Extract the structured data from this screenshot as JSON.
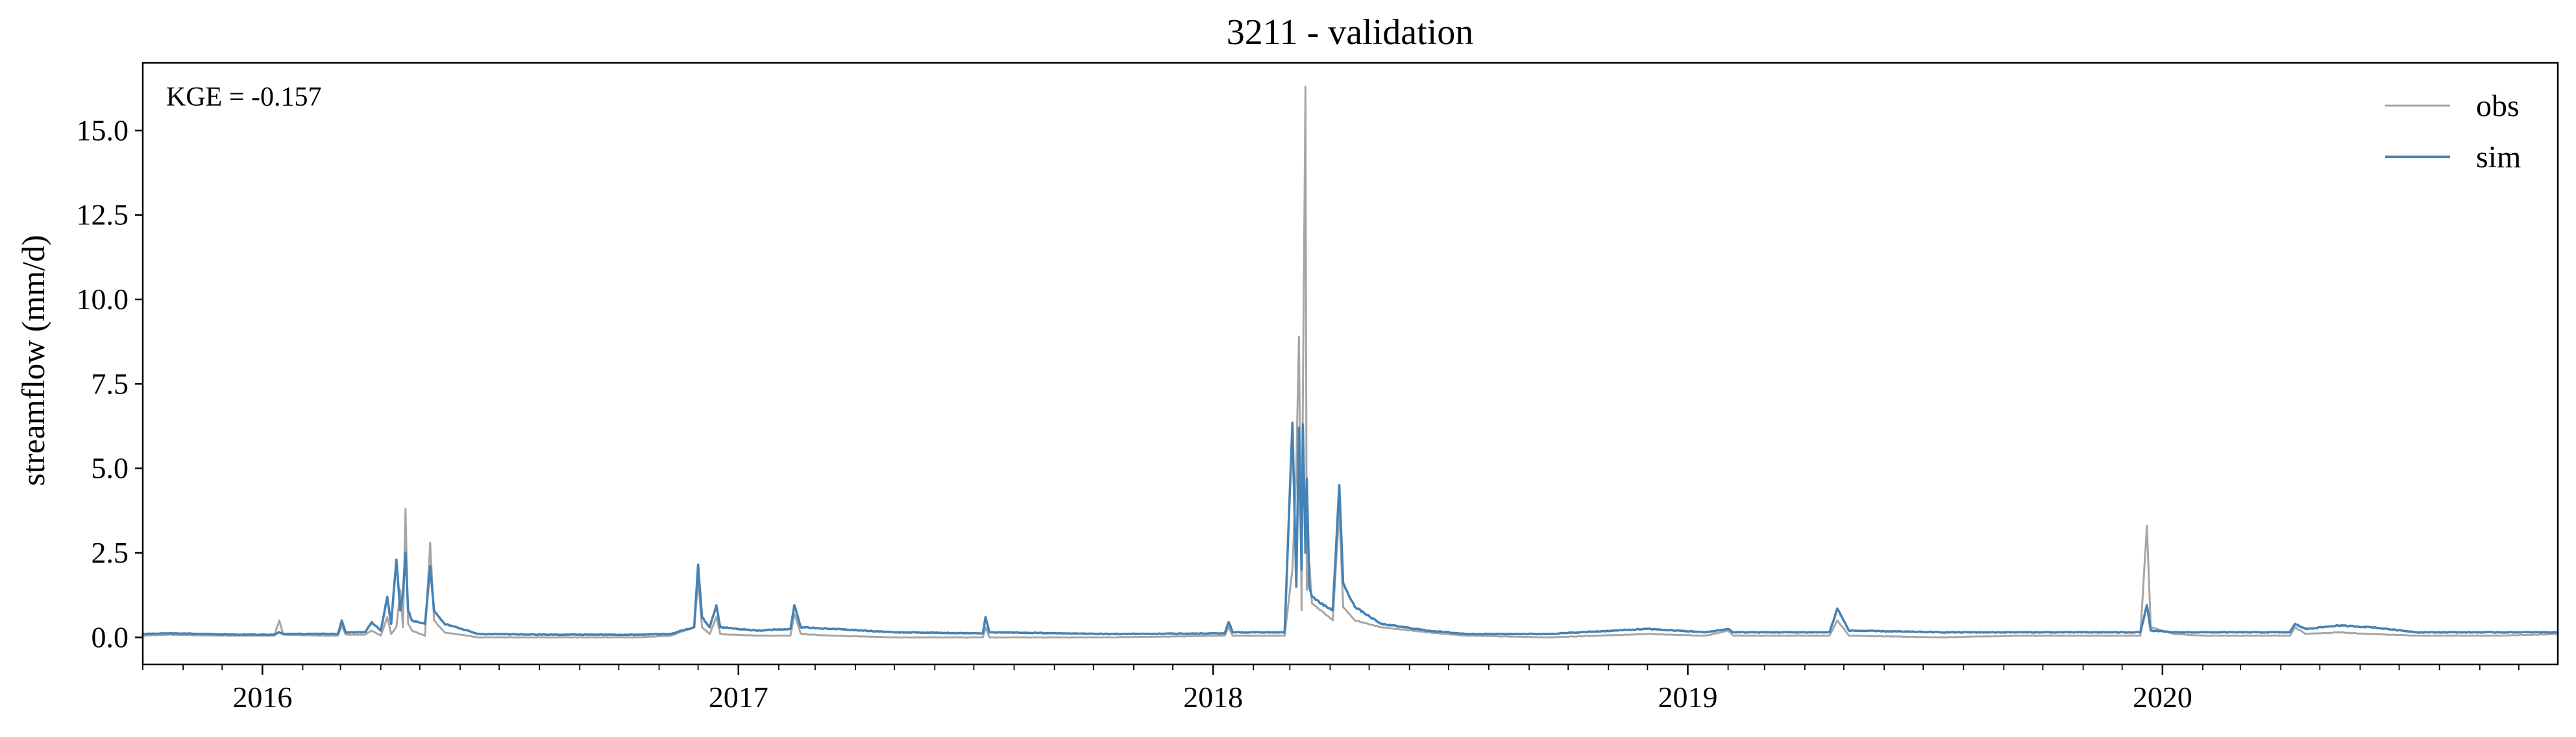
{
  "chart_data": {
    "type": "line",
    "title": "3211 - validation",
    "xlabel": "",
    "ylabel": "streamflow (mm/d)",
    "annotation": "KGE = -0.157",
    "x_range": [
      "2015-10-01",
      "2020-10-31"
    ],
    "ylim": [
      -0.8,
      17.0
    ],
    "y_ticks": [
      0.0,
      2.5,
      5.0,
      7.5,
      10.0,
      12.5,
      15.0
    ],
    "y_tick_labels": [
      "0.0",
      "2.5",
      "5.0",
      "7.5",
      "10.0",
      "12.5",
      "15.0"
    ],
    "x_ticks": [
      "2016-01-01",
      "2017-01-01",
      "2018-01-01",
      "2019-01-01",
      "2020-01-01"
    ],
    "x_tick_labels": [
      "2016",
      "2017",
      "2018",
      "2019",
      "2020"
    ],
    "grid": false,
    "legend_position": "top-right",
    "series": [
      {
        "name": "obs",
        "color": "#a6a6a6",
        "points": [
          [
            "2015-10-01",
            0.05
          ],
          [
            "2015-10-20",
            0.08
          ],
          [
            "2015-11-15",
            0.06
          ],
          [
            "2015-12-15",
            0.05
          ],
          [
            "2016-01-10",
            0.05
          ],
          [
            "2016-01-14",
            0.5
          ],
          [
            "2016-01-17",
            0.08
          ],
          [
            "2016-02-15",
            0.05
          ],
          [
            "2016-02-28",
            0.05
          ],
          [
            "2016-03-02",
            0.35
          ],
          [
            "2016-03-05",
            0.08
          ],
          [
            "2016-03-20",
            0.08
          ],
          [
            "2016-03-25",
            0.2
          ],
          [
            "2016-04-01",
            0.05
          ],
          [
            "2016-04-06",
            0.6
          ],
          [
            "2016-04-09",
            0.1
          ],
          [
            "2016-04-13",
            0.3
          ],
          [
            "2016-04-16",
            1.4
          ],
          [
            "2016-04-18",
            0.3
          ],
          [
            "2016-04-20",
            3.8
          ],
          [
            "2016-04-22",
            0.4
          ],
          [
            "2016-04-25",
            0.2
          ],
          [
            "2016-05-05",
            0.05
          ],
          [
            "2016-05-09",
            2.8
          ],
          [
            "2016-05-12",
            0.5
          ],
          [
            "2016-05-20",
            0.15
          ],
          [
            "2016-06-15",
            0.0
          ],
          [
            "2016-08-15",
            0.0
          ],
          [
            "2016-10-15",
            0.0
          ],
          [
            "2016-11-10",
            0.05
          ],
          [
            "2016-11-28",
            0.3
          ],
          [
            "2016-12-01",
            1.7
          ],
          [
            "2016-12-04",
            0.3
          ],
          [
            "2016-12-10",
            0.1
          ],
          [
            "2016-12-15",
            0.6
          ],
          [
            "2016-12-18",
            0.1
          ],
          [
            "2017-01-15",
            0.05
          ],
          [
            "2017-02-10",
            0.05
          ],
          [
            "2017-02-13",
            0.7
          ],
          [
            "2017-02-18",
            0.1
          ],
          [
            "2017-03-15",
            0.05
          ],
          [
            "2017-05-01",
            0.0
          ],
          [
            "2017-07-08",
            0.0
          ],
          [
            "2017-07-10",
            0.3
          ],
          [
            "2017-07-13",
            0.0
          ],
          [
            "2017-10-15",
            0.0
          ],
          [
            "2018-01-10",
            0.05
          ],
          [
            "2018-01-13",
            0.3
          ],
          [
            "2018-01-16",
            0.05
          ],
          [
            "2018-02-25",
            0.05
          ],
          [
            "2018-03-03",
            2.0
          ],
          [
            "2018-03-06",
            5.0
          ],
          [
            "2018-03-08",
            8.9
          ],
          [
            "2018-03-10",
            0.8
          ],
          [
            "2018-03-11",
            7.0
          ],
          [
            "2018-03-13",
            16.3
          ],
          [
            "2018-03-14",
            1.4
          ],
          [
            "2018-03-16",
            2.2
          ],
          [
            "2018-03-18",
            1.0
          ],
          [
            "2018-03-25",
            0.8
          ],
          [
            "2018-04-03",
            0.5
          ],
          [
            "2018-04-08",
            3.8
          ],
          [
            "2018-04-11",
            0.9
          ],
          [
            "2018-04-20",
            0.5
          ],
          [
            "2018-05-10",
            0.3
          ],
          [
            "2018-06-15",
            0.15
          ],
          [
            "2018-07-15",
            0.05
          ],
          [
            "2018-09-15",
            0.0
          ],
          [
            "2018-12-01",
            0.1
          ],
          [
            "2019-01-15",
            0.05
          ],
          [
            "2019-02-01",
            0.2
          ],
          [
            "2019-02-05",
            0.05
          ],
          [
            "2019-04-20",
            0.05
          ],
          [
            "2019-04-26",
            0.5
          ],
          [
            "2019-05-05",
            0.05
          ],
          [
            "2019-07-15",
            0.0
          ],
          [
            "2019-09-15",
            0.05
          ],
          [
            "2019-12-15",
            0.05
          ],
          [
            "2019-12-20",
            3.3
          ],
          [
            "2019-12-23",
            0.3
          ],
          [
            "2020-01-10",
            0.1
          ],
          [
            "2020-02-01",
            0.05
          ],
          [
            "2020-04-08",
            0.05
          ],
          [
            "2020-04-12",
            0.3
          ],
          [
            "2020-04-20",
            0.1
          ],
          [
            "2020-05-15",
            0.15
          ],
          [
            "2020-06-10",
            0.1
          ],
          [
            "2020-07-15",
            0.05
          ],
          [
            "2020-09-15",
            0.05
          ],
          [
            "2020-10-31",
            0.1
          ]
        ]
      },
      {
        "name": "sim",
        "color": "#4682b4",
        "points": [
          [
            "2015-10-01",
            0.1
          ],
          [
            "2015-10-20",
            0.12
          ],
          [
            "2015-11-15",
            0.1
          ],
          [
            "2015-12-15",
            0.08
          ],
          [
            "2016-01-10",
            0.08
          ],
          [
            "2016-01-14",
            0.15
          ],
          [
            "2016-01-17",
            0.1
          ],
          [
            "2016-02-15",
            0.1
          ],
          [
            "2016-02-28",
            0.1
          ],
          [
            "2016-03-02",
            0.5
          ],
          [
            "2016-03-05",
            0.15
          ],
          [
            "2016-03-20",
            0.15
          ],
          [
            "2016-03-25",
            0.45
          ],
          [
            "2016-04-01",
            0.2
          ],
          [
            "2016-04-06",
            1.2
          ],
          [
            "2016-04-09",
            0.4
          ],
          [
            "2016-04-13",
            2.3
          ],
          [
            "2016-04-16",
            0.8
          ],
          [
            "2016-04-18",
            1.3
          ],
          [
            "2016-04-20",
            2.5
          ],
          [
            "2016-04-22",
            0.8
          ],
          [
            "2016-04-25",
            0.5
          ],
          [
            "2016-05-05",
            0.4
          ],
          [
            "2016-05-09",
            2.1
          ],
          [
            "2016-05-12",
            0.8
          ],
          [
            "2016-05-20",
            0.4
          ],
          [
            "2016-06-15",
            0.1
          ],
          [
            "2016-08-15",
            0.08
          ],
          [
            "2016-10-15",
            0.08
          ],
          [
            "2016-11-10",
            0.1
          ],
          [
            "2016-11-28",
            0.3
          ],
          [
            "2016-12-01",
            2.15
          ],
          [
            "2016-12-04",
            0.6
          ],
          [
            "2016-12-10",
            0.3
          ],
          [
            "2016-12-15",
            0.95
          ],
          [
            "2016-12-18",
            0.3
          ],
          [
            "2017-01-15",
            0.2
          ],
          [
            "2017-02-10",
            0.25
          ],
          [
            "2017-02-13",
            0.95
          ],
          [
            "2017-02-18",
            0.3
          ],
          [
            "2017-03-15",
            0.25
          ],
          [
            "2017-05-01",
            0.15
          ],
          [
            "2017-07-08",
            0.12
          ],
          [
            "2017-07-10",
            0.6
          ],
          [
            "2017-07-13",
            0.15
          ],
          [
            "2017-10-15",
            0.1
          ],
          [
            "2018-01-10",
            0.12
          ],
          [
            "2018-01-13",
            0.45
          ],
          [
            "2018-01-16",
            0.15
          ],
          [
            "2018-02-25",
            0.15
          ],
          [
            "2018-03-03",
            6.35
          ],
          [
            "2018-03-06",
            1.5
          ],
          [
            "2018-03-08",
            6.2
          ],
          [
            "2018-03-10",
            2.0
          ],
          [
            "2018-03-11",
            6.3
          ],
          [
            "2018-03-13",
            2.5
          ],
          [
            "2018-03-14",
            4.7
          ],
          [
            "2018-03-16",
            1.5
          ],
          [
            "2018-03-18",
            1.2
          ],
          [
            "2018-03-25",
            1.0
          ],
          [
            "2018-04-03",
            0.8
          ],
          [
            "2018-04-08",
            4.5
          ],
          [
            "2018-04-11",
            1.6
          ],
          [
            "2018-04-20",
            0.9
          ],
          [
            "2018-05-10",
            0.4
          ],
          [
            "2018-06-15",
            0.2
          ],
          [
            "2018-07-15",
            0.1
          ],
          [
            "2018-09-15",
            0.1
          ],
          [
            "2018-12-01",
            0.25
          ],
          [
            "2019-01-15",
            0.15
          ],
          [
            "2019-02-01",
            0.25
          ],
          [
            "2019-02-05",
            0.15
          ],
          [
            "2019-04-20",
            0.15
          ],
          [
            "2019-04-26",
            0.85
          ],
          [
            "2019-05-05",
            0.2
          ],
          [
            "2019-07-15",
            0.15
          ],
          [
            "2019-09-15",
            0.15
          ],
          [
            "2019-12-15",
            0.15
          ],
          [
            "2019-12-20",
            0.95
          ],
          [
            "2019-12-23",
            0.2
          ],
          [
            "2020-01-10",
            0.15
          ],
          [
            "2020-02-01",
            0.15
          ],
          [
            "2020-04-08",
            0.15
          ],
          [
            "2020-04-12",
            0.4
          ],
          [
            "2020-04-20",
            0.25
          ],
          [
            "2020-05-15",
            0.35
          ],
          [
            "2020-06-10",
            0.3
          ],
          [
            "2020-07-15",
            0.15
          ],
          [
            "2020-09-15",
            0.15
          ],
          [
            "2020-10-31",
            0.15
          ]
        ]
      }
    ]
  }
}
